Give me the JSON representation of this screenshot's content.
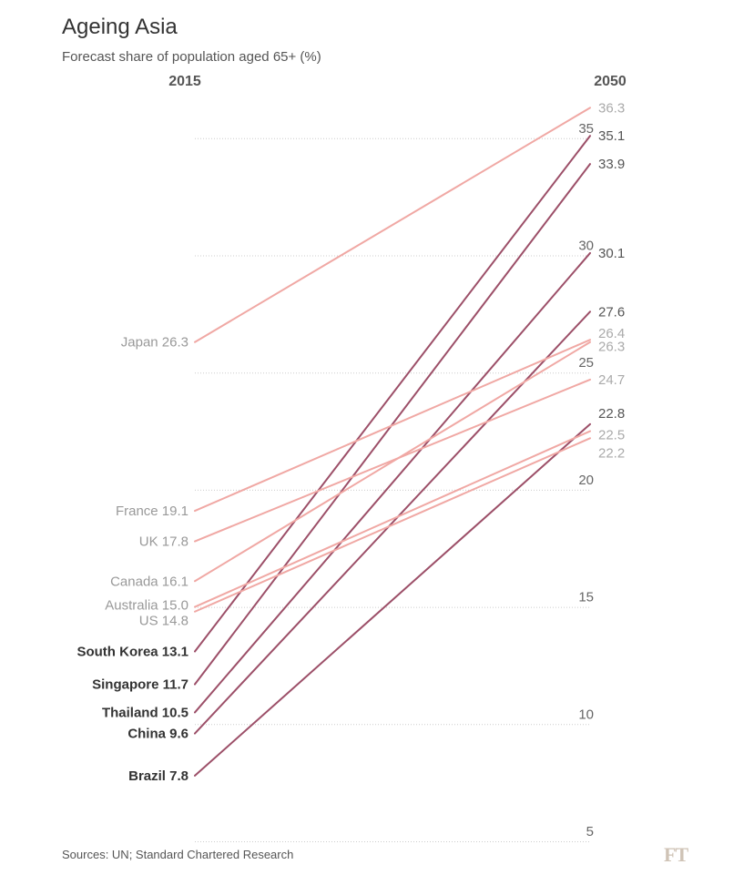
{
  "title": "Ageing Asia",
  "subtitle": "Forecast share of population aged 65+ (%)",
  "source": "Sources: UN; Standard Chartered Research",
  "logo": "FT",
  "colors": {
    "developed": "#f0a8a4",
    "asia": "#9c4f68"
  },
  "chart_data": {
    "type": "slope",
    "title": "Ageing Asia",
    "subtitle": "Forecast share of population aged 65+ (%)",
    "x": [
      "2015",
      "2050"
    ],
    "ylim": [
      5,
      36.3
    ],
    "yticks": [
      5,
      10,
      15,
      20,
      25,
      30,
      35
    ],
    "grid": true,
    "series": [
      {
        "name": "Japan",
        "values": [
          26.3,
          36.3
        ],
        "label_2015": "Japan 26.3",
        "label_2050": "36.3",
        "group": "developed"
      },
      {
        "name": "South Korea",
        "values": [
          13.1,
          35.1
        ],
        "label_2015": "South Korea 13.1",
        "label_2050": "35.1",
        "group": "asia"
      },
      {
        "name": "Singapore",
        "values": [
          11.7,
          33.9
        ],
        "label_2015": "Singapore 11.7",
        "label_2050": "33.9",
        "group": "asia"
      },
      {
        "name": "Thailand",
        "values": [
          10.5,
          30.1
        ],
        "label_2015": "Thailand 10.5",
        "label_2050": "30.1",
        "group": "asia"
      },
      {
        "name": "China",
        "values": [
          9.6,
          27.6
        ],
        "label_2015": "China 9.6",
        "label_2050": "27.6",
        "group": "asia"
      },
      {
        "name": "France",
        "values": [
          19.1,
          26.4
        ],
        "label_2015": "France 19.1",
        "label_2050": "26.4",
        "group": "developed"
      },
      {
        "name": "Canada",
        "values": [
          16.1,
          26.3
        ],
        "label_2015": "Canada 16.1",
        "label_2050": "26.3",
        "group": "developed"
      },
      {
        "name": "UK",
        "values": [
          17.8,
          24.7
        ],
        "label_2015": "UK 17.8",
        "label_2050": "24.7",
        "group": "developed"
      },
      {
        "name": "Brazil",
        "values": [
          7.8,
          22.8
        ],
        "label_2015": "Brazil 7.8",
        "label_2050": "22.8",
        "group": "asia"
      },
      {
        "name": "Australia",
        "values": [
          15.0,
          22.5
        ],
        "label_2015": "Australia 15.0",
        "label_2050": "22.5",
        "group": "developed"
      },
      {
        "name": "US",
        "values": [
          14.8,
          22.2
        ],
        "label_2015": "US 14.8",
        "label_2050": "22.2",
        "group": "developed"
      }
    ]
  }
}
